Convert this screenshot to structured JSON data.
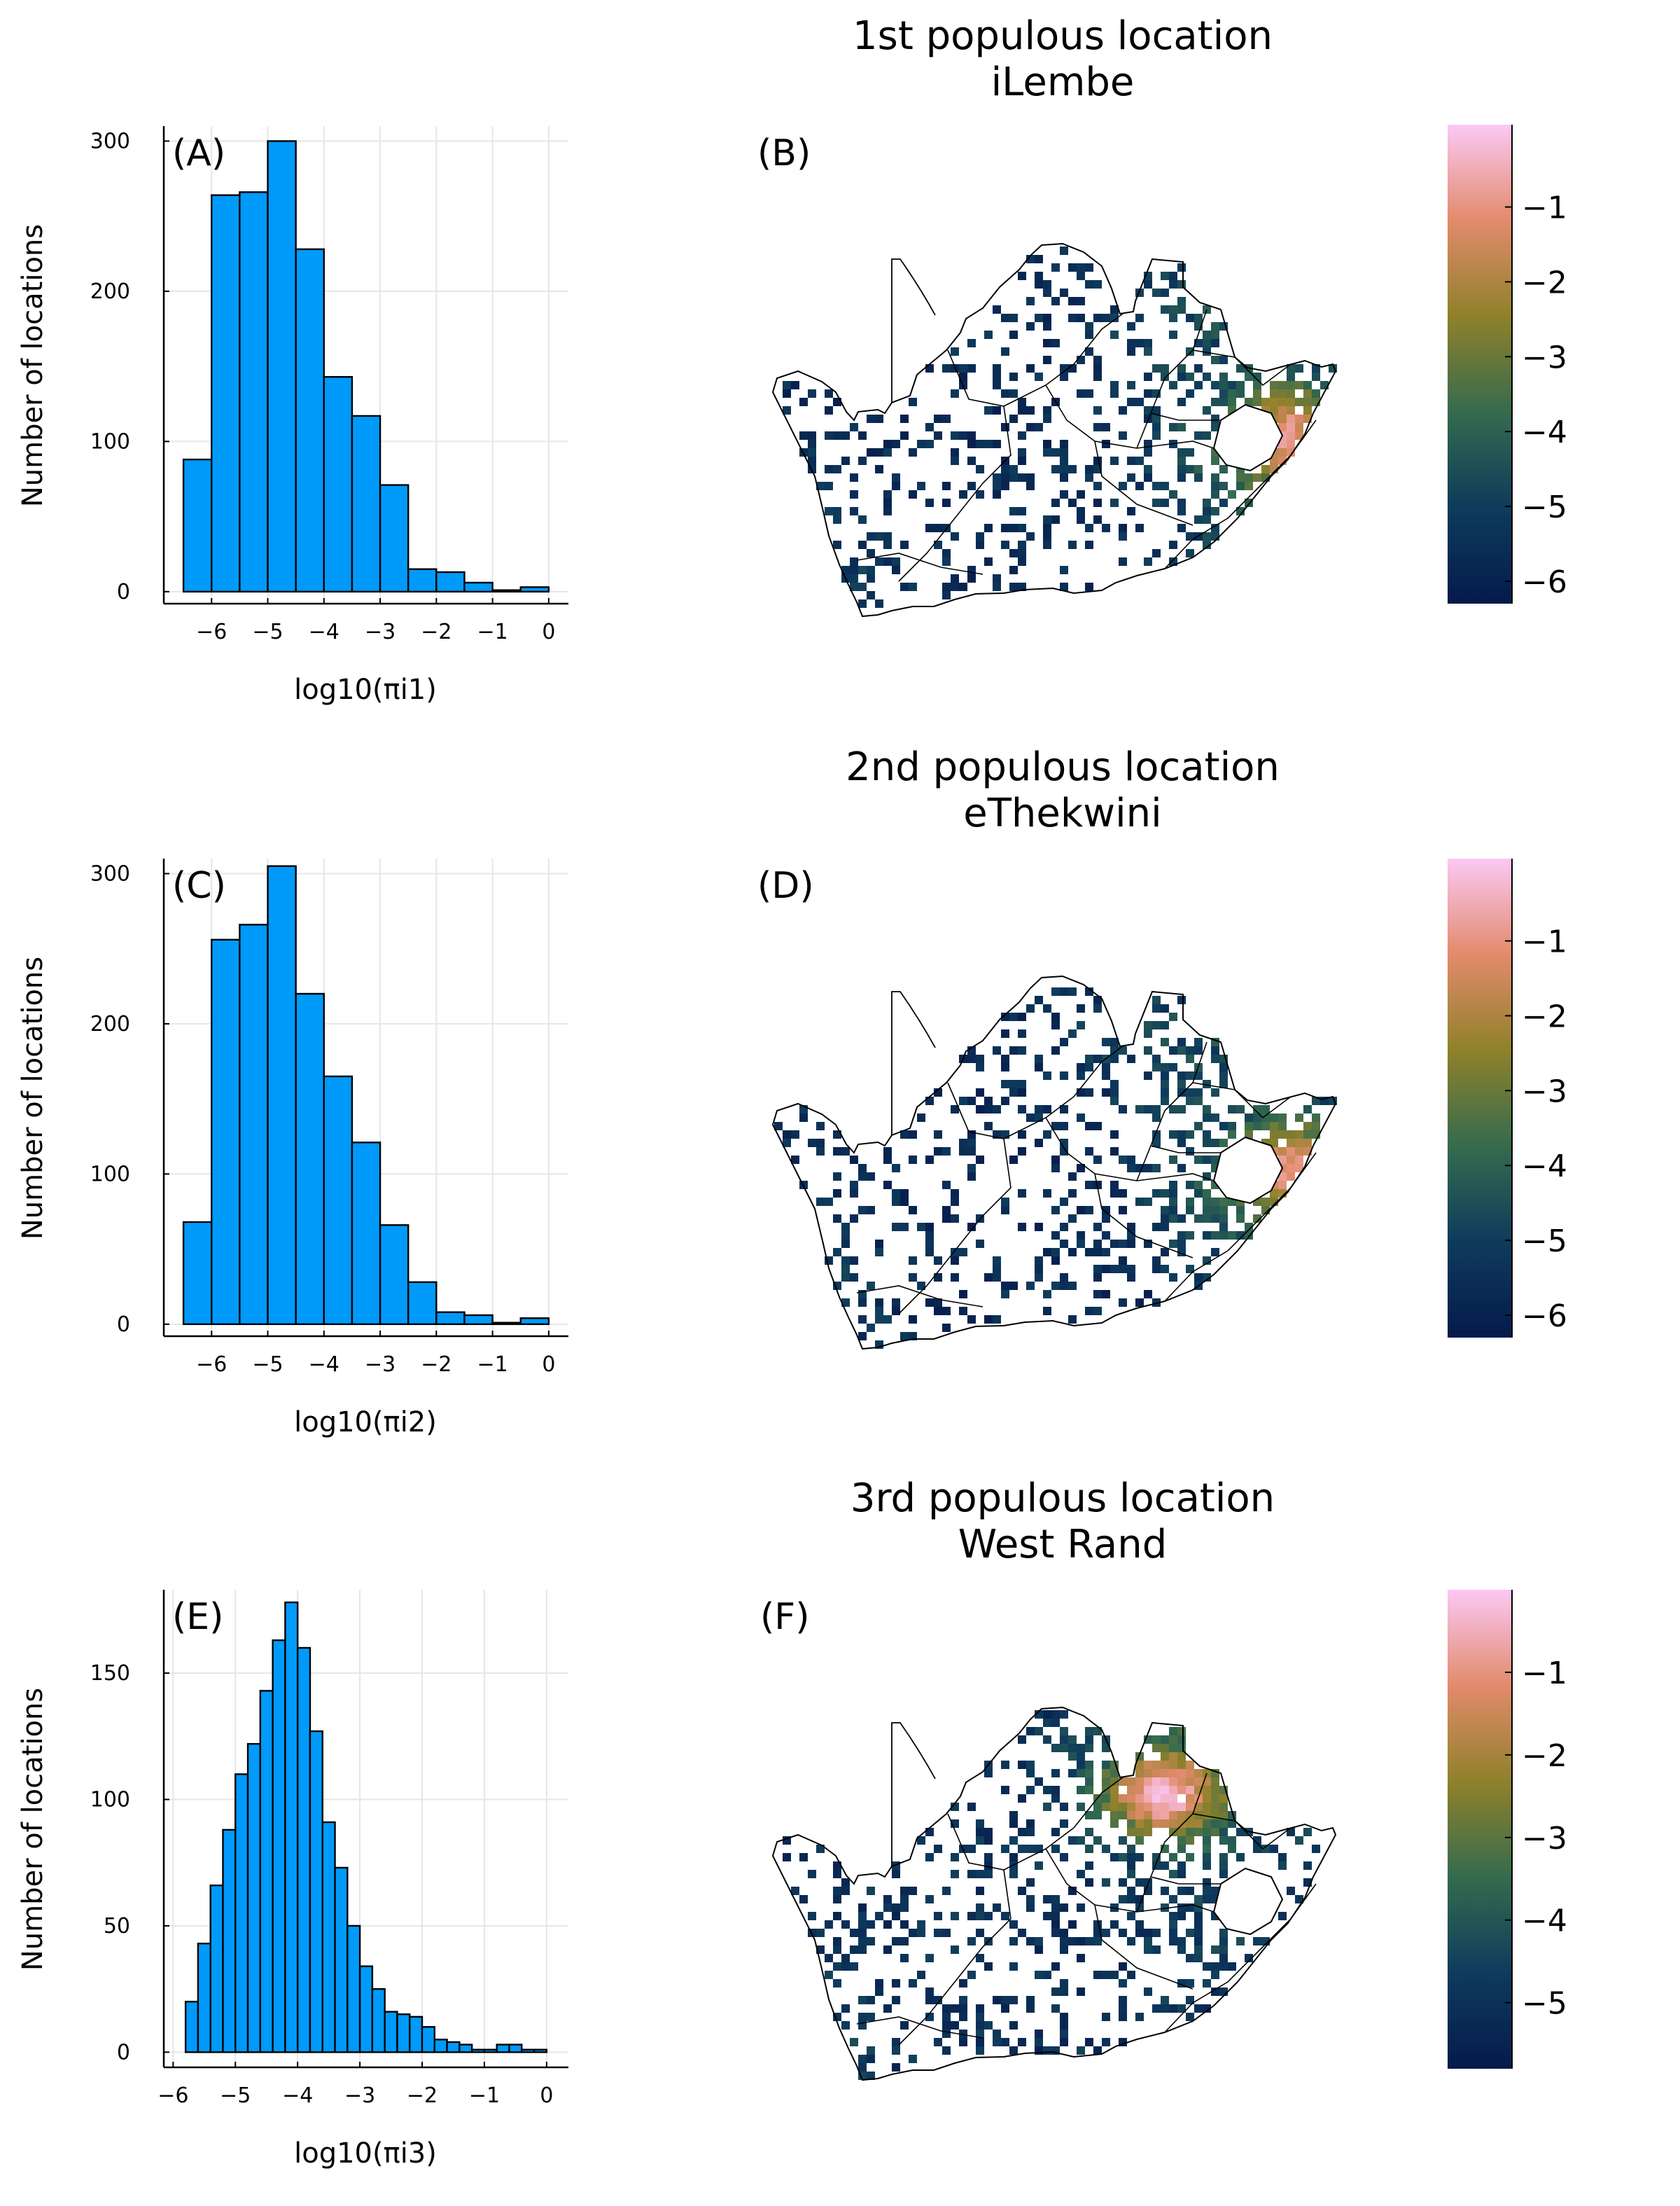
{
  "chart_data": [
    {
      "type": "bar",
      "panel_label": "(A)",
      "xlabel": "log10(πi1)",
      "ylabel": "Number of locations",
      "xlim": [
        -6.85,
        0.35
      ],
      "ylim": [
        -8,
        310
      ],
      "xticks": [
        -6,
        -5,
        -4,
        -3,
        -2,
        -1,
        0
      ],
      "xtick_labels": [
        "−6",
        "−5",
        "−4",
        "−3",
        "−2",
        "−1",
        "0"
      ],
      "yticks": [
        0,
        100,
        200,
        300
      ],
      "yticks_labels": [
        "0",
        "100",
        "200",
        "300"
      ],
      "bin_edges": [
        -6.5,
        -6.0,
        -5.5,
        -5.0,
        -4.5,
        -4.0,
        -3.5,
        -3.0,
        -2.5,
        -2.0,
        -1.5,
        -1.0,
        -0.5,
        0.0
      ],
      "values": [
        88,
        264,
        266,
        300,
        228,
        143,
        117,
        71,
        15,
        13,
        6,
        1,
        3
      ],
      "bar_color": "#009AFA",
      "grid": true
    },
    {
      "type": "heatmap",
      "panel_label": "(B)",
      "title": "1st populous location",
      "subtitle": "iLembe",
      "colorbar_ticks": [
        -1,
        -2,
        -3,
        -4,
        -5,
        -6
      ],
      "colorbar_tick_labels": [
        "−1",
        "−2",
        "−3",
        "−4",
        "−5",
        "−6"
      ],
      "colorbar_range": [
        -6.3,
        0.1
      ],
      "hotspot": "east coast (iLembe)"
    },
    {
      "type": "bar",
      "panel_label": "(C)",
      "xlabel": "log10(πi2)",
      "ylabel": "Number of locations",
      "xlim": [
        -6.85,
        0.35
      ],
      "ylim": [
        -8,
        310
      ],
      "xticks": [
        -6,
        -5,
        -4,
        -3,
        -2,
        -1,
        0
      ],
      "xtick_labels": [
        "−6",
        "−5",
        "−4",
        "−3",
        "−2",
        "−1",
        "0"
      ],
      "yticks": [
        0,
        100,
        200,
        300
      ],
      "yticks_labels": [
        "0",
        "100",
        "200",
        "300"
      ],
      "bin_edges": [
        -6.5,
        -6.0,
        -5.5,
        -5.0,
        -4.5,
        -4.0,
        -3.5,
        -3.0,
        -2.5,
        -2.0,
        -1.5,
        -1.0,
        -0.5,
        0.0
      ],
      "values": [
        68,
        256,
        266,
        305,
        220,
        165,
        121,
        66,
        28,
        8,
        6,
        1,
        4
      ],
      "bar_color": "#009AFA",
      "grid": true
    },
    {
      "type": "heatmap",
      "panel_label": "(D)",
      "title": "2nd populous location",
      "subtitle": "eThekwini",
      "colorbar_ticks": [
        -1,
        -2,
        -3,
        -4,
        -5,
        -6
      ],
      "colorbar_tick_labels": [
        "−1",
        "−2",
        "−3",
        "−4",
        "−5",
        "−6"
      ],
      "colorbar_range": [
        -6.3,
        0.1
      ],
      "hotspot": "east coast (eThekwini)"
    },
    {
      "type": "bar",
      "panel_label": "(E)",
      "xlabel": "log10(πi3)",
      "ylabel": "Number of locations",
      "xlim": [
        -6.15,
        0.35
      ],
      "ylim": [
        -6,
        183
      ],
      "xticks": [
        -6,
        -5,
        -4,
        -3,
        -2,
        -1,
        0
      ],
      "xtick_labels": [
        "−6",
        "−5",
        "−4",
        "−3",
        "−2",
        "−1",
        "0"
      ],
      "yticks": [
        0,
        50,
        100,
        150
      ],
      "yticks_labels": [
        "0",
        "50",
        "100",
        "150"
      ],
      "bin_edges": [
        -5.8,
        -5.6,
        -5.4,
        -5.2,
        -5.0,
        -4.8,
        -4.6,
        -4.4,
        -4.2,
        -4.0,
        -3.8,
        -3.6,
        -3.4,
        -3.2,
        -3.0,
        -2.8,
        -2.6,
        -2.4,
        -2.2,
        -2.0,
        -1.8,
        -1.6,
        -1.4,
        -1.2,
        -1.0,
        -0.8,
        -0.6,
        -0.4,
        -0.2,
        0.0
      ],
      "values": [
        20,
        43,
        66,
        88,
        110,
        122,
        143,
        163,
        178,
        160,
        127,
        91,
        73,
        50,
        34,
        25,
        16,
        15,
        14,
        10,
        5,
        4,
        3,
        1,
        1,
        3,
        3,
        1,
        1
      ],
      "bar_color": "#009AFA",
      "grid": true
    },
    {
      "type": "heatmap",
      "panel_label": "(F)",
      "title": "3rd populous location",
      "subtitle": "West Rand",
      "colorbar_ticks": [
        -1,
        -2,
        -3,
        -4,
        -5
      ],
      "colorbar_tick_labels": [
        "−1",
        "−2",
        "−3",
        "−4",
        "−5"
      ],
      "colorbar_range": [
        -5.8,
        0.0
      ],
      "hotspot": "Gauteng (West Rand)"
    }
  ]
}
